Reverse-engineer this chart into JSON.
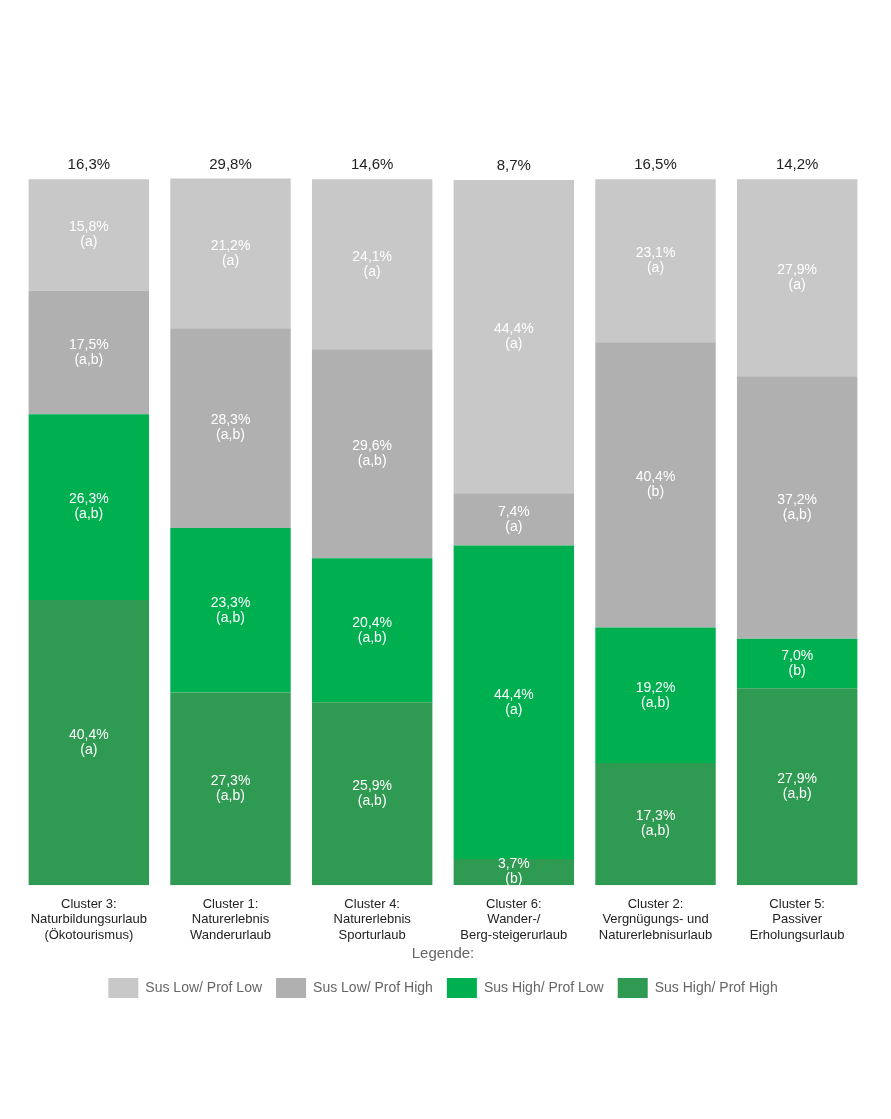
{
  "chart_data": {
    "type": "bar",
    "stacked": true,
    "legend": "bottom",
    "legend_title": "Legende:",
    "tick_labels": "x",
    "grid": false,
    "categories": [
      "Cluster 3: Naturbildungsurlaub (Ökotourismus)",
      "Cluster 1: Naturerlebnis Wanderurlaub",
      "Cluster 4: Naturerlebnis Sporturlaub",
      "Cluster 6: Wander-/ Berg-steigerurlaub",
      "Cluster 2: Vergnügungs- und Naturerlebnisurlaub",
      "Cluster 5: Passiver Erholungsurlaub"
    ],
    "series": [
      {
        "name": "Sus High/ Prof High",
        "color": "#2f9a52",
        "values": [
          40.4,
          27.3,
          25.9,
          3.7,
          17.3,
          27.9
        ],
        "value_labels": [
          "40,4% (a)",
          "27,3% (a,b)",
          "25,9% (a,b)",
          "3,7% (b)",
          "17,3% (a,b)",
          "27,9% (a,b)"
        ]
      },
      {
        "name": "Sus High/ Prof Low",
        "color": "#00b050",
        "values": [
          26.3,
          23.3,
          20.4,
          44.4,
          19.2,
          7.0
        ],
        "value_labels": [
          "26,3% (a,b)",
          "23,3% (a,b)",
          "20,4% (a,b)",
          "44,4% (a)",
          "19,2% (a,b)",
          "7,0% (b)"
        ]
      },
      {
        "name": "Sus Low/ Prof High",
        "color": "#b0b0b0",
        "values": [
          17.5,
          28.3,
          29.6,
          7.4,
          40.4,
          37.2
        ],
        "value_labels": [
          "17,5% (a,b)",
          "28,3% (a,b)",
          "29,6% (a,b)",
          "7,4% (a)",
          "40,4% (b)",
          "37,2% (a,b)"
        ]
      },
      {
        "name": "Sus Low/ Prof Low",
        "color": "#c8c8c8",
        "values": [
          15.8,
          21.2,
          24.1,
          44.4,
          23.1,
          27.9
        ],
        "value_labels": [
          "15,8% (a)",
          "21,2% (a)",
          "24,1% (a)",
          "44,4% (a)",
          "23,1% (a)",
          "27,9% (a)"
        ]
      }
    ],
    "annotations": [
      "16,3%",
      "29,8%",
      "14,6%",
      "8,7%",
      "16,5%",
      "14,2%"
    ]
  }
}
